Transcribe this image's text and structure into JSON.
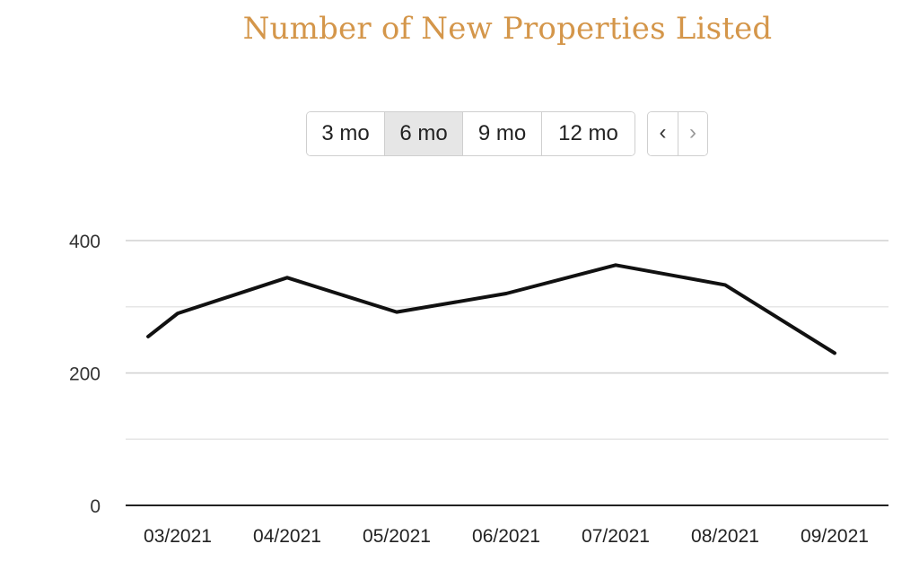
{
  "title": "Number of New Properties Listed",
  "range_buttons": [
    {
      "label": "3 mo",
      "active": false
    },
    {
      "label": "6 mo",
      "active": true
    },
    {
      "label": "9 mo",
      "active": false
    },
    {
      "label": "12 mo",
      "active": false
    }
  ],
  "nav": {
    "prev_glyph": "‹",
    "next_glyph": "›"
  },
  "colors": {
    "title": "#d4964a",
    "line": "#111111",
    "grid": "#d0d0d0",
    "minor_grid": "#e6e6e6",
    "axis": "#222222"
  },
  "chart_data": {
    "type": "line",
    "title": "Number of New Properties Listed",
    "xlabel": "",
    "ylabel": "",
    "ylim": [
      0,
      400
    ],
    "yticks": [
      0,
      200,
      400
    ],
    "minor_yticks": [
      100,
      300
    ],
    "grid": true,
    "categories": [
      "03/2021",
      "04/2021",
      "05/2021",
      "06/2021",
      "07/2021",
      "08/2021",
      "09/2021"
    ],
    "series": [
      {
        "x": [
          2.73,
          3.0,
          4.0,
          5.0,
          6.0,
          7.0,
          8.0,
          9.0
        ],
        "values": [
          255,
          290,
          344,
          292,
          320,
          363,
          333,
          230
        ]
      }
    ],
    "x_start_value": 255,
    "x_start_position_note": "line begins at chart left edge"
  }
}
